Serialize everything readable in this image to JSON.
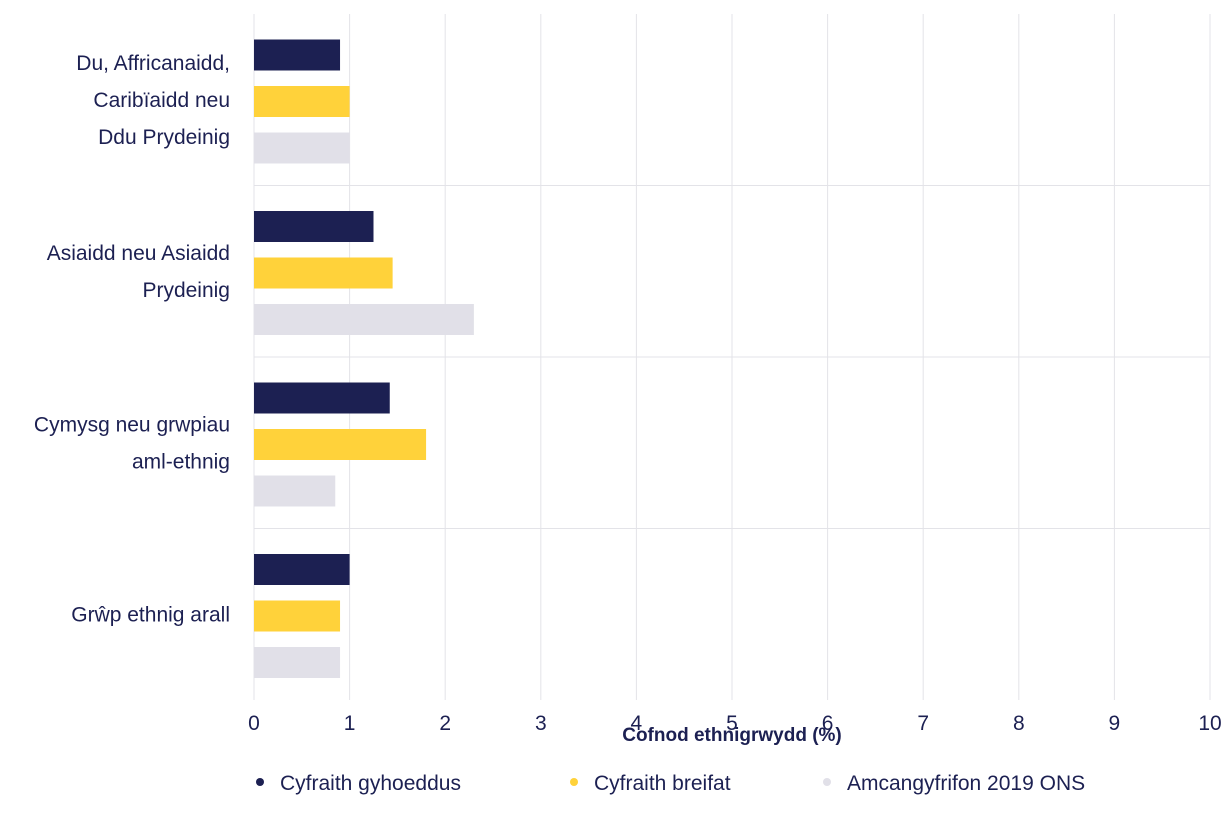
{
  "chart_data": {
    "type": "bar",
    "orientation": "horizontal",
    "categories": [
      [
        "Du, Affricanaidd,",
        "Caribïaidd neu",
        "Ddu Prydeinig"
      ],
      [
        "Asiaidd neu Asiaidd",
        "Prydeinig"
      ],
      [
        "Cymysg neu grwpiau",
        "aml-ethnig"
      ],
      [
        "Grŵp ethnig arall"
      ]
    ],
    "series": [
      {
        "name": "Cyfraith gyhoeddus",
        "color": "#1c2052",
        "values": [
          0.9,
          1.25,
          1.42,
          1.0
        ]
      },
      {
        "name": "Cyfraith breifat",
        "color": "#ffd23a",
        "values": [
          1.0,
          1.45,
          1.8,
          0.9
        ]
      },
      {
        "name": "Amcangyfrifon 2019 ONS",
        "color": "#e1e0e8",
        "values": [
          1.0,
          2.3,
          0.85,
          0.9
        ]
      }
    ],
    "xlabel": "Cofnod ethnigrwydd (%)",
    "xlim": [
      0,
      10
    ],
    "xticks": [
      "0",
      "1",
      "2",
      "3",
      "4",
      "5",
      "6",
      "7",
      "8",
      "9",
      "10"
    ],
    "grid": true,
    "legend_position": "bottom"
  }
}
